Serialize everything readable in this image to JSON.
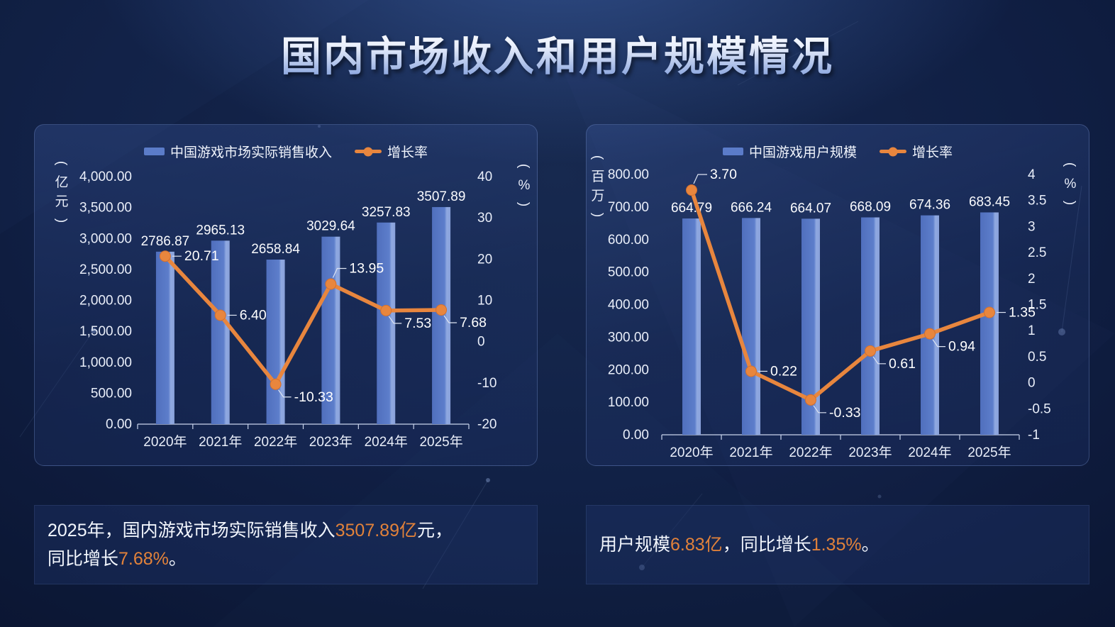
{
  "page": {
    "title": "国内市场收入和用户规模情况"
  },
  "colors": {
    "background": "#0f1f44",
    "panel_border": "#8aa2de",
    "bar": "#5b7cc9",
    "bar_highlight": "#90a9e1",
    "line": "#e8863e",
    "accent_text": "#e2823a",
    "axis_text": "#e9eef9",
    "value_text": "#fafbfe",
    "axis_line": "#c9d4ec",
    "leader_line": "#dde4f2"
  },
  "chart_data": [
    {
      "type": "bar",
      "title": "",
      "categories": [
        "2020年",
        "2021年",
        "2022年",
        "2023年",
        "2024年",
        "2025年"
      ],
      "series": [
        {
          "type": "bar",
          "name": "中国游戏市场实际销售收入",
          "axis": "left",
          "values": [
            2786.87,
            2965.13,
            2658.84,
            3029.64,
            3257.83,
            3507.89
          ]
        },
        {
          "type": "line",
          "name": "增长率",
          "axis": "right",
          "values": [
            20.71,
            6.4,
            -10.33,
            13.95,
            7.53,
            7.68
          ]
        }
      ],
      "y_left": {
        "title": "（亿元）",
        "min": 0,
        "max": 4000,
        "step": 500,
        "format": "thousands2"
      },
      "y_right": {
        "title": "（%）",
        "min": -20,
        "max": 40,
        "step": 10,
        "format": "plain"
      },
      "grid": false,
      "legend_position": "top",
      "line_label_placements": [
        "r",
        "r",
        "d",
        "u",
        "d",
        "d"
      ]
    },
    {
      "type": "bar",
      "title": "",
      "categories": [
        "2020年",
        "2021年",
        "2022年",
        "2023年",
        "2024年",
        "2025年"
      ],
      "series": [
        {
          "type": "bar",
          "name": "中国游戏用户规模",
          "axis": "left",
          "values": [
            664.79,
            666.24,
            664.07,
            668.09,
            674.36,
            683.45
          ]
        },
        {
          "type": "line",
          "name": "增长率",
          "axis": "right",
          "values": [
            3.7,
            0.22,
            -0.33,
            0.61,
            0.94,
            1.35
          ]
        }
      ],
      "y_left": {
        "title": "（百万）",
        "min": 0,
        "max": 800,
        "step": 100,
        "format": "thousands2"
      },
      "y_right": {
        "title": "（%）",
        "min": -1,
        "max": 4,
        "step": 0.5,
        "format": "plain"
      },
      "grid": false,
      "legend_position": "top",
      "line_label_placements": [
        "u",
        "r",
        "d",
        "d",
        "d",
        "r"
      ]
    }
  ],
  "notes": {
    "left": {
      "lines": [
        [
          {
            "t": "2025年，国内游戏市场实际销售收入"
          },
          {
            "t": "3507.89亿",
            "a": true
          },
          {
            "t": "元，"
          }
        ],
        [
          {
            "t": "同比增长"
          },
          {
            "t": "7.68%",
            "a": true
          },
          {
            "t": "。"
          }
        ]
      ]
    },
    "right": {
      "lines": [
        [
          {
            "t": "用户规模"
          },
          {
            "t": "6.83亿",
            "a": true
          },
          {
            "t": "，同比增长"
          },
          {
            "t": "1.35%",
            "a": true
          },
          {
            "t": "。"
          }
        ]
      ]
    }
  }
}
